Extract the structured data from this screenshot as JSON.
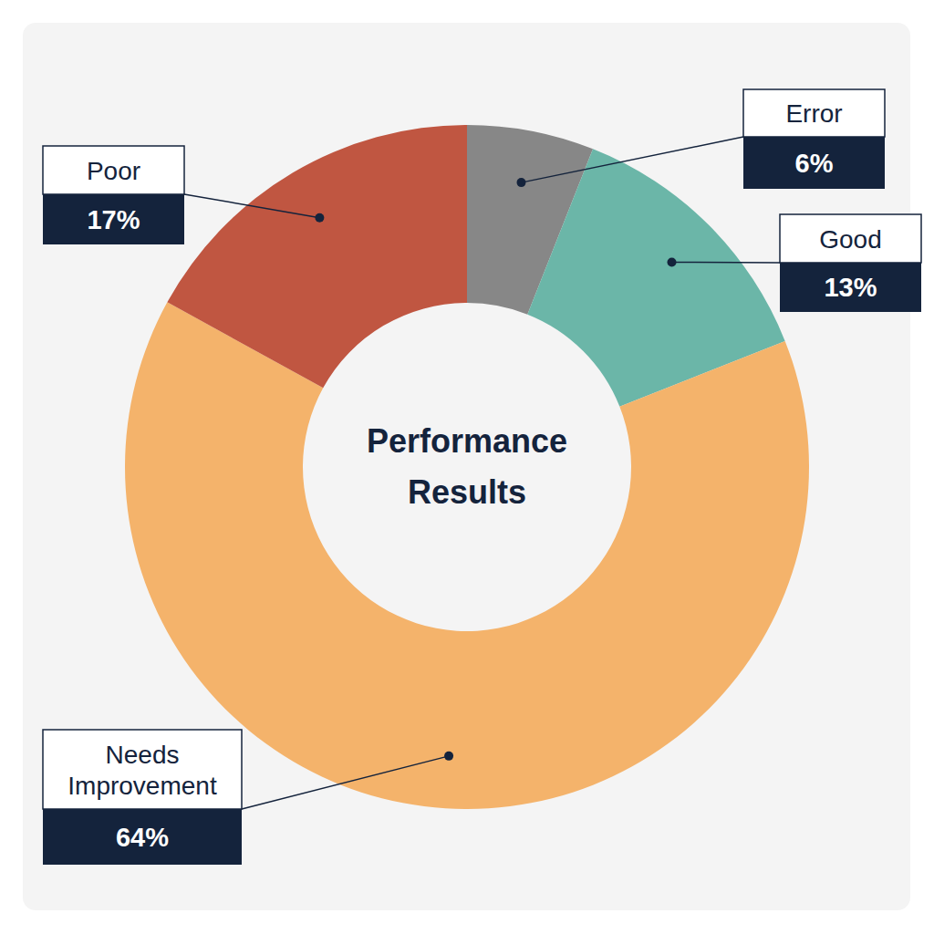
{
  "chart_data": {
    "type": "donut",
    "title": "Performance Results",
    "categories": [
      "Error",
      "Good",
      "Needs Improvement",
      "Poor"
    ],
    "values": [
      6,
      13,
      64,
      17
    ],
    "value_labels": [
      "6%",
      "13%",
      "64%",
      "17%"
    ],
    "colors": [
      "#878787",
      "#6bb6a8",
      "#f4b36b",
      "#c05641"
    ],
    "data_labels": true
  }
}
